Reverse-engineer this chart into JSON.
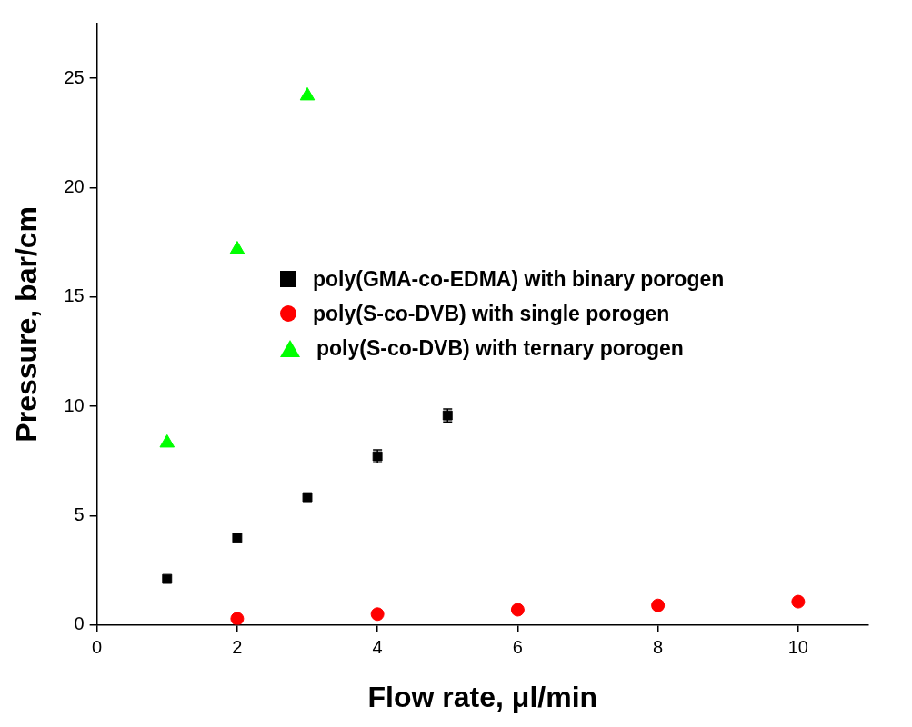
{
  "chart_data": {
    "type": "scatter",
    "xlabel": "Flow rate, μl/min",
    "ylabel": "Pressure, bar/cm",
    "xlim": [
      0,
      11
    ],
    "xticks": [
      0,
      2,
      4,
      6,
      8,
      10
    ],
    "ylim": [
      0,
      27.5
    ],
    "yticks": [
      0,
      5,
      10,
      15,
      20,
      25
    ],
    "grid": false,
    "legend": "right",
    "series": [
      {
        "name": "poly(GMA-co-EDMA) with binary porogen",
        "color": "#000000",
        "marker": "square",
        "x": [
          1,
          2,
          3,
          4,
          5
        ],
        "values": [
          2.1,
          3.98,
          5.84,
          7.71,
          9.58
        ],
        "errors": [
          null,
          null,
          null,
          0.3,
          0.3
        ]
      },
      {
        "name": "poly(S-co-DVB) with single porogen",
        "color": "#ff0000",
        "marker": "circle",
        "x": [
          2,
          4,
          6,
          8,
          10
        ],
        "values": [
          0.28,
          0.49,
          0.69,
          0.89,
          1.06
        ]
      },
      {
        "name": "poly(S-co-DVB) with ternary porogen",
        "color": "#00ff00",
        "marker": "triangle",
        "x": [
          1,
          2,
          3
        ],
        "values": [
          8.32,
          17.17,
          24.2
        ]
      }
    ]
  }
}
